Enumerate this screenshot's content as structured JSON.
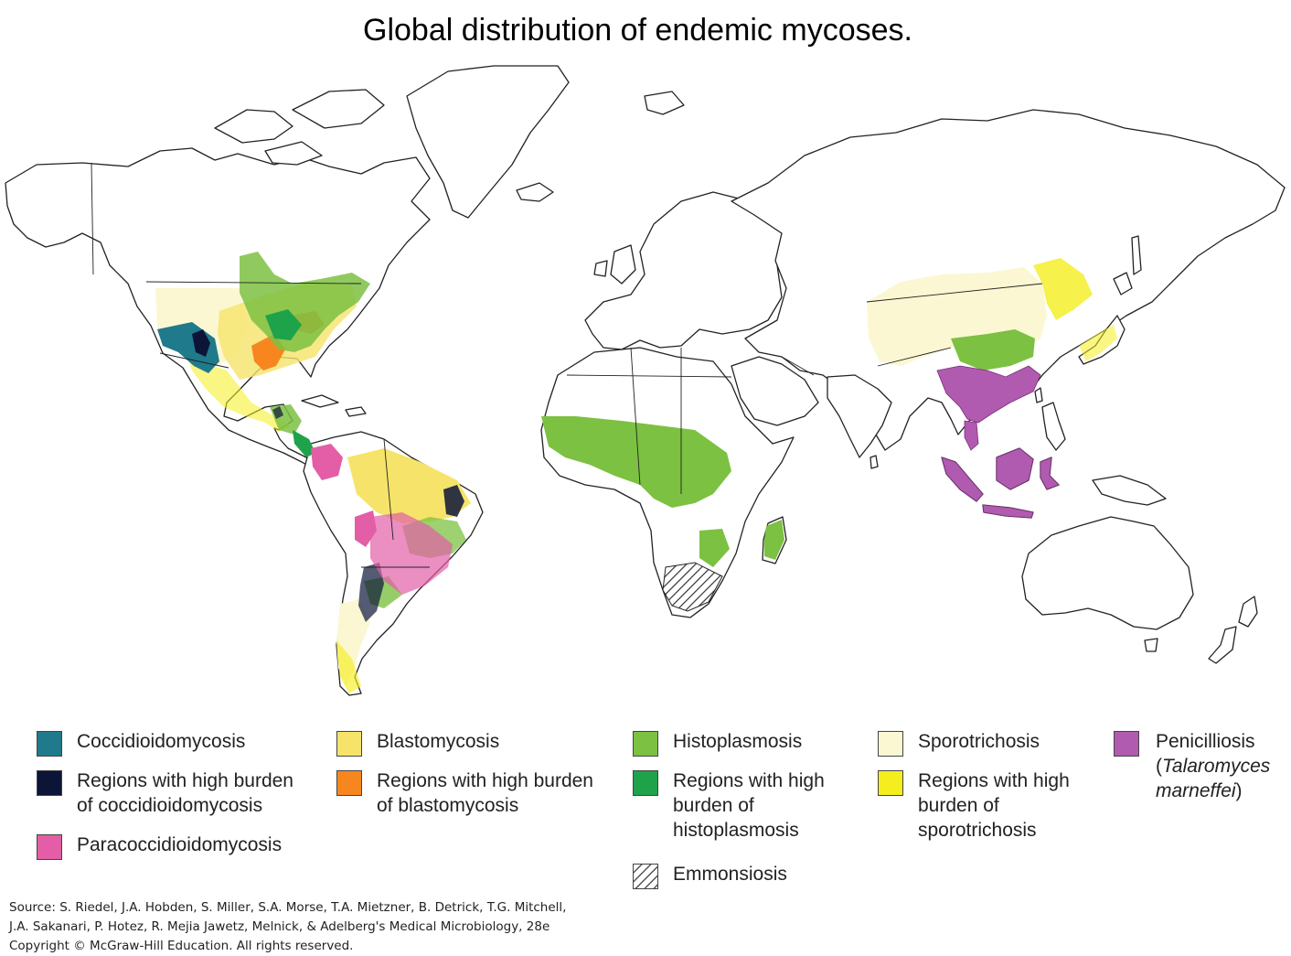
{
  "title": "Global distribution of endemic mycoses.",
  "colors": {
    "coccidioidomycosis": "#1f7a8c",
    "coccidioidomycosis_high": "#0c1538",
    "paracoccidioidomycosis": "#e35ea6",
    "blastomycosis": "#f6e36a",
    "blastomycosis_high": "#f7861e",
    "histoplasmosis": "#7cc142",
    "histoplasmosis_high": "#1ea34a",
    "sporotrichosis": "#fbf7d2",
    "sporotrichosis_high": "#f4ee1e",
    "penicilliosis": "#b05bb0",
    "emmonsiosis": "hatched"
  },
  "legend": {
    "coccidioidomycosis": "Coccidioidomycosis",
    "coccidioidomycosis_high": "Regions with high burden\nof coccidioidomycosis",
    "paracoccidioidomycosis": "Paracoccidioidomycosis",
    "blastomycosis": "Blastomycosis",
    "blastomycosis_high": "Regions with high burden\nof blastomycosis",
    "histoplasmosis": "Histoplasmosis",
    "histoplasmosis_high": "Regions with high\nburden of\nhistoplasmosis",
    "emmonsiosis": "Emmonsiosis",
    "sporotrichosis": "Sporotrichosis",
    "sporotrichosis_high": "Regions with high\nburden of\nsporotrichosis",
    "penicilliosis": "Penicilliosis",
    "penicilliosis_open": "(",
    "penicilliosis_sci": "Talaromyces\nmarneffei",
    "penicilliosis_close": ")"
  },
  "source": "Source: S. Riedel, J.A. Hobden, S. Miller, S.A. Morse, T.A. Mietzner, B. Detrick, T.G. Mitchell,\nJ.A. Sakanari, P. Hotez, R. Mejia Jawetz, Melnick, & Adelberg's Medical Microbiology, 28e\nCopyright © McGraw-Hill Education. All rights reserved."
}
